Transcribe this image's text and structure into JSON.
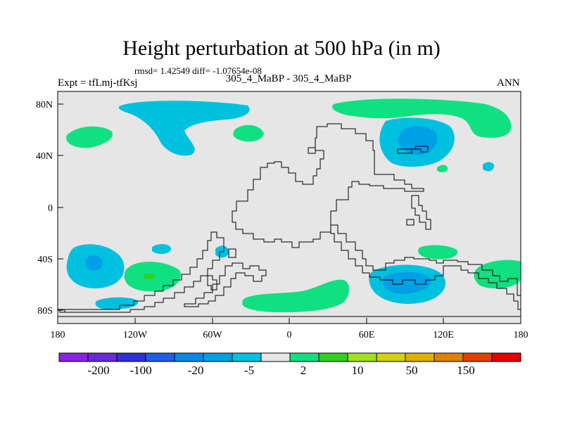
{
  "title": "Height perturbation at 500 hPa (in m)",
  "stats": "rmsd= 1.42549 diff= -1.07654e-08",
  "expt": "Expt = tfLmj-tfKsj",
  "subtitle": "305_4_MaBP - 305_4_MaBP",
  "season": "ANN",
  "colors": {
    "background": "#e6e6e6",
    "coast": "#000000",
    "neg_light": "#00c0e0",
    "neg_mid": "#00a0e6",
    "pos_light": "#10e080",
    "pos_mid": "#30d020"
  },
  "map_data": {
    "type": "contour-map",
    "projection": "cylindrical equidistant",
    "variable": "500 hPa height perturbation",
    "units": "m",
    "x_ticks": [
      "180",
      "120W",
      "60W",
      "0",
      "60E",
      "120E",
      "180"
    ],
    "y_ticks": [
      "80N",
      "40N",
      "0",
      "40S",
      "80S"
    ],
    "lon_range": [
      -180,
      180
    ],
    "lat_range": [
      -90,
      90
    ]
  },
  "colorbar": {
    "colors": [
      "#8a20e6",
      "#6a2ad8",
      "#3030d8",
      "#1f5ee6",
      "#0a88e6",
      "#00a0e6",
      "#00c0e0",
      "#e6e6e6",
      "#10e080",
      "#30d020",
      "#a0e020",
      "#d0d010",
      "#e0b000",
      "#e08000",
      "#e04000",
      "#e60000"
    ],
    "labels": [
      "-200",
      "-100",
      "-20",
      "-5",
      "2",
      "10",
      "50",
      "150"
    ]
  }
}
